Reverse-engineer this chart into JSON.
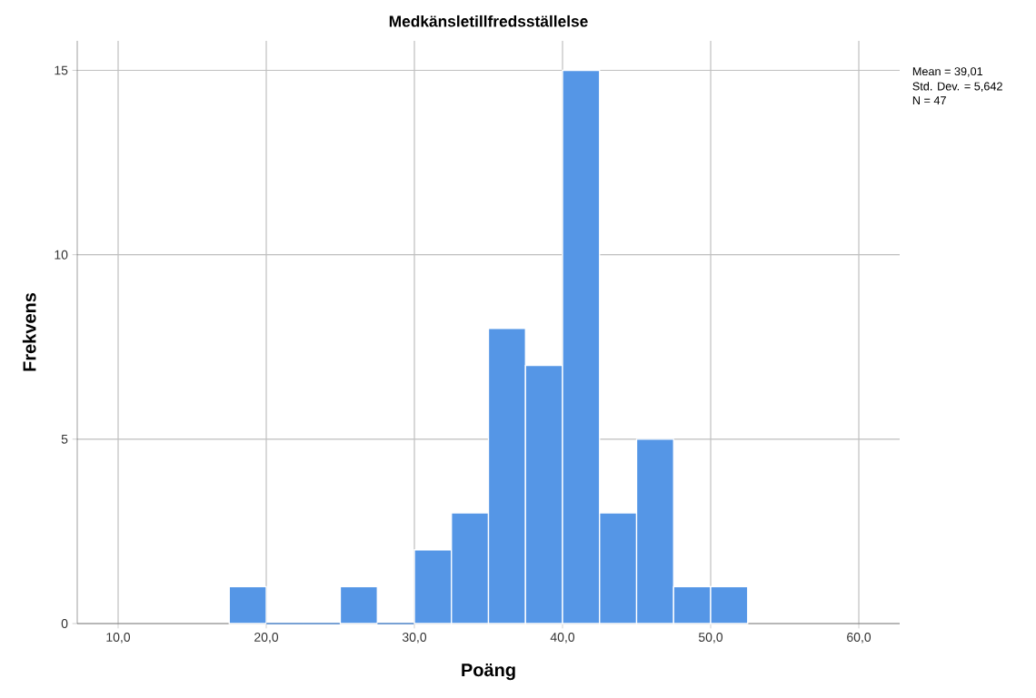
{
  "chart_data": {
    "type": "histogram",
    "title": "Medkänsletillfredsställelse",
    "xlabel": "Poäng",
    "ylabel": "Frekvens",
    "bins": [
      17.5,
      20,
      22.5,
      25,
      27.5,
      30,
      32.5,
      35,
      37.5,
      40,
      42.5,
      45,
      47.5,
      50,
      52.5
    ],
    "values": [
      1,
      0,
      0,
      1,
      0,
      2,
      3,
      8,
      7,
      15,
      3,
      5,
      1,
      1
    ],
    "color": "#5596e6",
    "xlim": [
      7.24,
      62.76
    ],
    "ylim": [
      0,
      15.8
    ],
    "xticks": [
      {
        "value": 10,
        "label": "10,0"
      },
      {
        "value": 20,
        "label": "20,0"
      },
      {
        "value": 30,
        "label": "30,0"
      },
      {
        "value": 40,
        "label": "40,0"
      },
      {
        "value": 50,
        "label": "50,0"
      },
      {
        "value": 60,
        "label": "60,0"
      }
    ],
    "yticks": [
      0,
      5,
      10,
      15
    ],
    "grid": true,
    "annotations": [
      "Mean = 39,01",
      "Std. Dev. = 5,642",
      "N = 47"
    ]
  }
}
